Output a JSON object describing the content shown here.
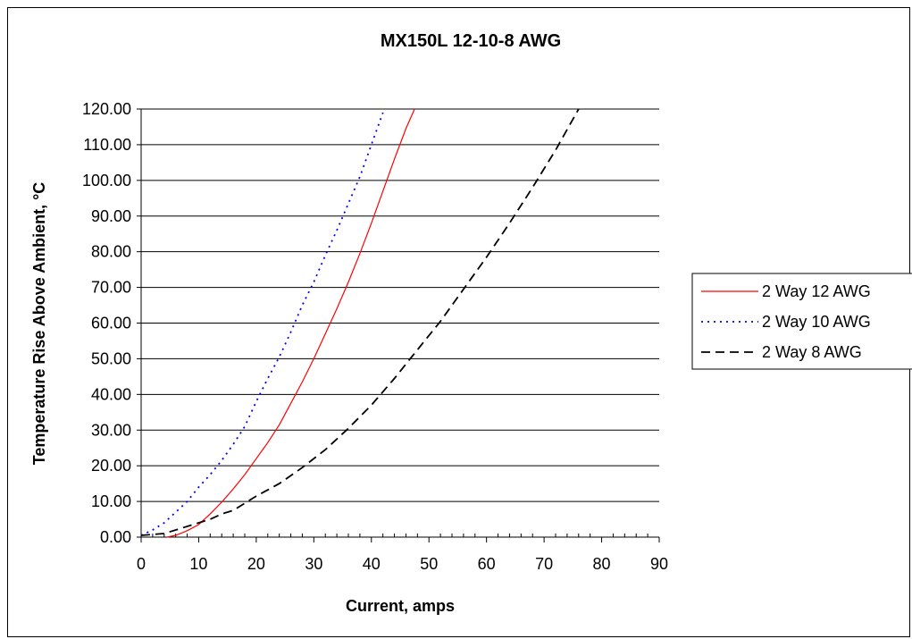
{
  "chart_data": {
    "type": "line",
    "title": "MX150L 12-10-8 AWG",
    "xlabel": "Current, amps",
    "ylabel": "Temperature Rise Above Ambient, °C",
    "xlim": [
      0,
      90
    ],
    "ylim": [
      0,
      120
    ],
    "x_ticks": [
      "0",
      "10",
      "20",
      "30",
      "40",
      "50",
      "60",
      "70",
      "80",
      "90"
    ],
    "y_ticks": [
      "0.00",
      "10.00",
      "20.00",
      "30.00",
      "40.00",
      "50.00",
      "60.00",
      "70.00",
      "80.00",
      "90.00",
      "100.00",
      "110.00",
      "120.00"
    ],
    "grid": "horizontal",
    "legend_position": "right",
    "series": [
      {
        "name": "2 Way 12 AWG",
        "color": "#ff0000",
        "style": "solid",
        "x": [
          4.5,
          6,
          8,
          10,
          12,
          14,
          16,
          18,
          20,
          22,
          24,
          26,
          28,
          30,
          32,
          34,
          36,
          38,
          40,
          42,
          44,
          46,
          47.5
        ],
        "y": [
          0,
          0.5,
          1.8,
          3.5,
          6.5,
          9.8,
          13.5,
          17.5,
          22,
          26.5,
          31.5,
          37.5,
          43.5,
          50,
          57,
          64,
          71.5,
          79.5,
          88,
          97,
          106,
          114.5,
          120
        ]
      },
      {
        "name": "2 Way 10 AWG",
        "color": "#0000ff",
        "style": "dotted",
        "x": [
          0,
          2,
          4,
          6,
          8,
          10,
          12,
          14,
          16,
          18,
          20,
          22,
          24,
          26,
          28,
          30,
          32,
          34,
          36,
          38,
          40,
          42
        ],
        "y": [
          0.5,
          2,
          4,
          7,
          10,
          14,
          17.5,
          21.5,
          26,
          31,
          38,
          44.5,
          50.5,
          57.5,
          65,
          71.5,
          79,
          86,
          93.5,
          101,
          110,
          119
        ]
      },
      {
        "name": "2 Way 8 AWG",
        "color": "#000000",
        "style": "dashed",
        "x": [
          0,
          4,
          8,
          10,
          12,
          14,
          16,
          18,
          20,
          24,
          28,
          32,
          36,
          40,
          44,
          48,
          52,
          56,
          60,
          64,
          68,
          72,
          76
        ],
        "y": [
          0.5,
          1,
          3,
          4,
          5,
          6.5,
          7.5,
          9.5,
          11.5,
          15,
          19.5,
          24.5,
          30.5,
          37,
          44.5,
          52.5,
          60.5,
          69.5,
          78.5,
          88,
          98,
          108.5,
          120
        ]
      }
    ]
  }
}
